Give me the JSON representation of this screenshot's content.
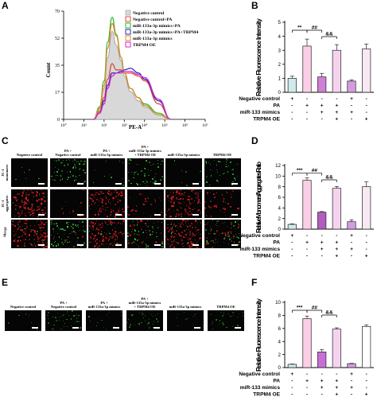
{
  "panels": {
    "A": {
      "letter": "A",
      "xlabel": "PE-A",
      "ylabel": "Count",
      "ytick_labels": [
        "0",
        "17",
        "35",
        "52",
        "70"
      ],
      "xtick_labels": [
        "10°",
        "10¹",
        "10²",
        "10³",
        "10⁴",
        "10⁵",
        "10⁶",
        "10⁷"
      ],
      "legend": [
        {
          "label": "Negative control",
          "color": "#bdbdbd"
        },
        {
          "label": "Negative control+PA",
          "color": "#e04a3a"
        },
        {
          "label": "miR-133a-3p mimics+PA",
          "color": "#2db82d"
        },
        {
          "label": "miR-133a-3p mimics+PA+TRPM4",
          "color": "#2a2ab8"
        },
        {
          "label": "miR-133a-3p mimics",
          "color": "#e08a2a"
        },
        {
          "label": "TRPM4 OE",
          "color": "#d02ad0"
        }
      ]
    },
    "B": {
      "letter": "B",
      "ylabel": "Relative Fluorescence Intensity",
      "ytick_labels": [
        "0",
        "1",
        "2",
        "3",
        "4",
        "5"
      ],
      "condition_labels": [
        "Negative control",
        "PA",
        "miR-133 mimics",
        "TRPM4 OE"
      ],
      "sig": [
        "**",
        "##",
        "&&"
      ],
      "grid": [
        [
          "+",
          "-",
          "-",
          "-",
          "+",
          "-"
        ],
        [
          "-",
          "+",
          "+",
          "+",
          "-",
          "-"
        ],
        [
          "-",
          "-",
          "+",
          "+",
          "+",
          "-"
        ],
        [
          "-",
          "-",
          "-",
          "+",
          "-",
          "+"
        ]
      ]
    },
    "C": {
      "letter": "C",
      "columns": [
        "Negative control",
        "PA +\nNegative control",
        "PA +\nmiR-133a-3p mimics",
        "PA +\nmiR-133a-3p mimics\n+ TRPM4 OE",
        "miR-133a-3p mimics",
        "TRPM4 OE"
      ],
      "rows": [
        "JC-1\nmonomers",
        "JC-1\naggregates",
        "Merge"
      ]
    },
    "D": {
      "letter": "D",
      "ylabel": "Relative Monomers/Aggregates Ratio",
      "ytick_labels": [
        "0",
        "2",
        "4",
        "6",
        "8",
        "10",
        "12"
      ],
      "condition_labels": [
        "Negative control",
        "PA",
        "miR-133 mimics",
        "TRPM4 OE"
      ],
      "sig": [
        "***",
        "##",
        "&&"
      ],
      "grid": [
        [
          "+",
          "-",
          "-",
          "-",
          "+",
          "-"
        ],
        [
          "-",
          "+",
          "+",
          "+",
          "-",
          "-"
        ],
        [
          "-",
          "-",
          "+",
          "+",
          "+",
          "-"
        ],
        [
          "-",
          "-",
          "-",
          "+",
          "-",
          "+"
        ]
      ]
    },
    "E": {
      "letter": "E",
      "columns": [
        "Negative control",
        "PA +\nNegative control",
        "PA +\nmiR-133a-3p mimics",
        "PA +\nmiR-133a-3p mimics\n+ TRPM4 OE",
        "miR-133a-3p mimics",
        "TRPM4 OE"
      ]
    },
    "F": {
      "letter": "F",
      "ylabel": "Relative Fluorescence Intensity",
      "ytick_labels": [
        "0",
        "2",
        "4",
        "6",
        "8",
        "10"
      ],
      "condition_labels": [
        "Negative control",
        "PA",
        "miR-133 mimics",
        "TRPM4 OE"
      ],
      "sig": [
        "***",
        "##",
        "&&"
      ],
      "grid": [
        [
          "+",
          "-",
          "-",
          "-",
          "+",
          "-"
        ],
        [
          "-",
          "+",
          "+",
          "+",
          "-",
          "-"
        ],
        [
          "-",
          "-",
          "+",
          "+",
          "+",
          "-"
        ],
        [
          "-",
          "-",
          "-",
          "+",
          "-",
          "+"
        ]
      ]
    }
  },
  "chart_data": [
    {
      "panel": "A",
      "type": "line",
      "x_scale": "log",
      "xlim": [
        1,
        10000000
      ],
      "ylim": [
        0,
        70
      ],
      "series": [
        {
          "name": "Negative control",
          "x": [
            30,
            60,
            100,
            150,
            250,
            400,
            700,
            1000,
            2000,
            5000,
            10000,
            50000,
            200000
          ],
          "y": [
            0,
            6,
            20,
            40,
            57,
            48,
            38,
            28,
            18,
            12,
            8,
            3,
            0
          ]
        },
        {
          "name": "Negative control+PA",
          "x": [
            30,
            60,
            100,
            150,
            250,
            400,
            700,
            1000,
            2000,
            5000,
            10000,
            50000,
            200000
          ],
          "y": [
            0,
            5,
            14,
            26,
            36,
            32,
            32,
            30,
            30,
            28,
            25,
            10,
            0
          ]
        },
        {
          "name": "miR-133a-3p mimics+PA",
          "x": [
            30,
            60,
            100,
            150,
            250,
            400,
            700,
            1000,
            2000,
            5000,
            10000,
            50000,
            200000
          ],
          "y": [
            0,
            8,
            25,
            50,
            66,
            55,
            40,
            30,
            20,
            14,
            10,
            4,
            0
          ]
        },
        {
          "name": "miR-133a-3p mimics+PA+TRPM4",
          "x": [
            30,
            60,
            100,
            150,
            250,
            400,
            700,
            1000,
            2000,
            5000,
            10000,
            50000,
            200000
          ],
          "y": [
            0,
            4,
            12,
            22,
            30,
            30,
            31,
            32,
            33,
            30,
            26,
            12,
            0
          ]
        },
        {
          "name": "miR-133a-3p mimics",
          "x": [
            30,
            60,
            100,
            150,
            250,
            400,
            700,
            1000,
            2000,
            5000,
            10000,
            50000,
            200000
          ],
          "y": [
            0,
            7,
            22,
            46,
            62,
            54,
            40,
            30,
            20,
            14,
            9,
            3,
            0
          ]
        },
        {
          "name": "TRPM4 OE",
          "x": [
            30,
            60,
            100,
            150,
            250,
            400,
            700,
            1000,
            2000,
            5000,
            10000,
            50000,
            200000
          ],
          "y": [
            0,
            4,
            10,
            20,
            28,
            30,
            30,
            31,
            31,
            29,
            27,
            13,
            0
          ]
        }
      ],
      "fills": [
        "#d8d8d8",
        null,
        null,
        null,
        null,
        null
      ]
    },
    {
      "panel": "B",
      "type": "bar",
      "ylim": [
        0,
        5
      ],
      "values": [
        1.0,
        3.3,
        1.1,
        3.0,
        0.8,
        3.1
      ],
      "errors": [
        0.15,
        0.5,
        0.25,
        0.4,
        0.08,
        0.35
      ],
      "colors": [
        "#cfe9ec",
        "#fbd0e6",
        "#cf7fd6",
        "#f5d3ef",
        "#d49ce0",
        "#f8e8f4"
      ]
    },
    {
      "panel": "D",
      "type": "bar",
      "ylim": [
        0,
        12
      ],
      "values": [
        0.9,
        9.2,
        3.2,
        7.7,
        1.4,
        8.0
      ],
      "errors": [
        0.1,
        0.45,
        0.12,
        0.35,
        0.35,
        0.9
      ],
      "colors": [
        "#cfe9ec",
        "#fbd0e6",
        "#b25cc0",
        "#f5d3ef",
        "#d49ce0",
        "#f8e8f4"
      ]
    },
    {
      "panel": "F",
      "type": "bar",
      "ylim": [
        0,
        10
      ],
      "values": [
        0.5,
        7.5,
        2.4,
        5.9,
        0.6,
        6.3
      ],
      "errors": [
        0.05,
        0.4,
        0.35,
        0.2,
        0.05,
        0.25
      ],
      "colors": [
        "#cfe9ec",
        "#fbd0e6",
        "#c86fd6",
        "#f5d3ef",
        "#d49ce0",
        "#ffffff"
      ]
    }
  ]
}
